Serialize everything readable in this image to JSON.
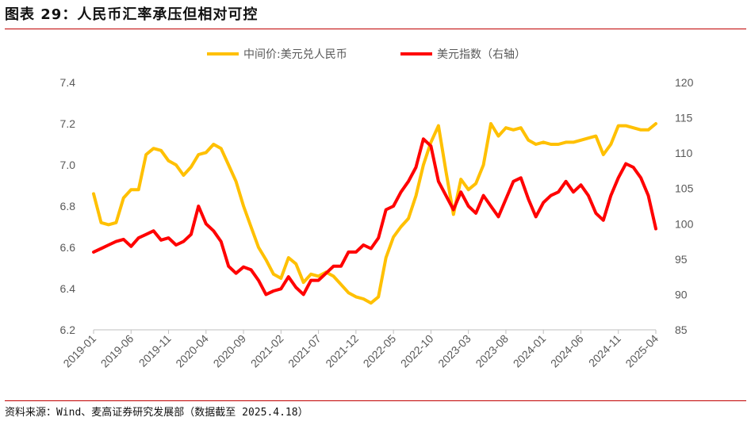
{
  "title": "图表 29：人民币汇率承压但相对可控",
  "source": "资料来源：Wind、麦高证券研究发展部（数据截至 2025.4.18）",
  "chart_data": {
    "type": "line",
    "legend_position": "top-center",
    "grid": false,
    "x": [
      "2019-01",
      "2019-06",
      "2019-11",
      "2020-04",
      "2020-09",
      "2021-02",
      "2021-07",
      "2021-12",
      "2022-05",
      "2022-10",
      "2023-03",
      "2023-08",
      "2024-01",
      "2024-06",
      "2024-11",
      "2025-04"
    ],
    "y_left": {
      "ticks": [
        "6.2",
        "6.4",
        "6.6",
        "6.8",
        "7.0",
        "7.2",
        "7.4"
      ],
      "range": [
        6.2,
        7.4
      ]
    },
    "y_right": {
      "ticks": [
        "85",
        "90",
        "95",
        "100",
        "105",
        "110",
        "115",
        "120"
      ],
      "range": [
        85,
        120
      ]
    },
    "series": [
      {
        "name": "中间价:美元兑人民币",
        "axis": "left",
        "color": "#ffc000",
        "points": [
          [
            "2019-01",
            6.86
          ],
          [
            "2019-02",
            6.72
          ],
          [
            "2019-03",
            6.71
          ],
          [
            "2019-04",
            6.72
          ],
          [
            "2019-05",
            6.84
          ],
          [
            "2019-06",
            6.88
          ],
          [
            "2019-07",
            6.88
          ],
          [
            "2019-08",
            7.05
          ],
          [
            "2019-09",
            7.08
          ],
          [
            "2019-10",
            7.07
          ],
          [
            "2019-11",
            7.02
          ],
          [
            "2019-12",
            7.0
          ],
          [
            "2020-01",
            6.95
          ],
          [
            "2020-02",
            6.99
          ],
          [
            "2020-03",
            7.05
          ],
          [
            "2020-04",
            7.06
          ],
          [
            "2020-05",
            7.1
          ],
          [
            "2020-06",
            7.08
          ],
          [
            "2020-07",
            7.0
          ],
          [
            "2020-08",
            6.92
          ],
          [
            "2020-09",
            6.8
          ],
          [
            "2020-10",
            6.7
          ],
          [
            "2020-11",
            6.6
          ],
          [
            "2020-12",
            6.54
          ],
          [
            "2021-01",
            6.47
          ],
          [
            "2021-02",
            6.45
          ],
          [
            "2021-03",
            6.55
          ],
          [
            "2021-04",
            6.52
          ],
          [
            "2021-05",
            6.43
          ],
          [
            "2021-06",
            6.47
          ],
          [
            "2021-07",
            6.46
          ],
          [
            "2021-08",
            6.48
          ],
          [
            "2021-09",
            6.46
          ],
          [
            "2021-10",
            6.42
          ],
          [
            "2021-11",
            6.38
          ],
          [
            "2021-12",
            6.36
          ],
          [
            "2022-01",
            6.35
          ],
          [
            "2022-02",
            6.33
          ],
          [
            "2022-03",
            6.36
          ],
          [
            "2022-04",
            6.55
          ],
          [
            "2022-05",
            6.65
          ],
          [
            "2022-06",
            6.7
          ],
          [
            "2022-07",
            6.74
          ],
          [
            "2022-08",
            6.85
          ],
          [
            "2022-09",
            7.0
          ],
          [
            "2022-10",
            7.11
          ],
          [
            "2022-11",
            7.19
          ],
          [
            "2022-12",
            6.97
          ],
          [
            "2023-01",
            6.76
          ],
          [
            "2023-02",
            6.93
          ],
          [
            "2023-03",
            6.88
          ],
          [
            "2023-04",
            6.91
          ],
          [
            "2023-05",
            7.0
          ],
          [
            "2023-06",
            7.2
          ],
          [
            "2023-07",
            7.14
          ],
          [
            "2023-08",
            7.18
          ],
          [
            "2023-09",
            7.17
          ],
          [
            "2023-10",
            7.18
          ],
          [
            "2023-11",
            7.12
          ],
          [
            "2023-12",
            7.1
          ],
          [
            "2024-01",
            7.11
          ],
          [
            "2024-02",
            7.1
          ],
          [
            "2024-03",
            7.1
          ],
          [
            "2024-04",
            7.11
          ],
          [
            "2024-05",
            7.11
          ],
          [
            "2024-06",
            7.12
          ],
          [
            "2024-07",
            7.13
          ],
          [
            "2024-08",
            7.14
          ],
          [
            "2024-09",
            7.05
          ],
          [
            "2024-10",
            7.1
          ],
          [
            "2024-11",
            7.19
          ],
          [
            "2024-12",
            7.19
          ],
          [
            "2025-01",
            7.18
          ],
          [
            "2025-02",
            7.17
          ],
          [
            "2025-03",
            7.17
          ],
          [
            "2025-04",
            7.2
          ]
        ]
      },
      {
        "name": "美元指数（右轴）",
        "axis": "right",
        "color": "#ff0000",
        "points": [
          [
            "2019-01",
            96.0
          ],
          [
            "2019-02",
            96.5
          ],
          [
            "2019-03",
            97.0
          ],
          [
            "2019-04",
            97.5
          ],
          [
            "2019-05",
            97.8
          ],
          [
            "2019-06",
            96.8
          ],
          [
            "2019-07",
            98.0
          ],
          [
            "2019-08",
            98.5
          ],
          [
            "2019-09",
            99.0
          ],
          [
            "2019-10",
            97.7
          ],
          [
            "2019-11",
            98.0
          ],
          [
            "2019-12",
            97.0
          ],
          [
            "2020-01",
            97.5
          ],
          [
            "2020-02",
            98.5
          ],
          [
            "2020-03",
            102.5
          ],
          [
            "2020-04",
            100.0
          ],
          [
            "2020-05",
            99.0
          ],
          [
            "2020-06",
            97.5
          ],
          [
            "2020-07",
            94.0
          ],
          [
            "2020-08",
            93.0
          ],
          [
            "2020-09",
            93.9
          ],
          [
            "2020-10",
            93.5
          ],
          [
            "2020-11",
            92.0
          ],
          [
            "2020-12",
            90.0
          ],
          [
            "2021-01",
            90.5
          ],
          [
            "2021-02",
            90.8
          ],
          [
            "2021-03",
            92.5
          ],
          [
            "2021-04",
            91.0
          ],
          [
            "2021-05",
            90.0
          ],
          [
            "2021-06",
            92.0
          ],
          [
            "2021-07",
            92.0
          ],
          [
            "2021-08",
            93.0
          ],
          [
            "2021-09",
            94.0
          ],
          [
            "2021-10",
            94.0
          ],
          [
            "2021-11",
            96.0
          ],
          [
            "2021-12",
            96.0
          ],
          [
            "2022-01",
            97.0
          ],
          [
            "2022-02",
            96.5
          ],
          [
            "2022-03",
            98.0
          ],
          [
            "2022-04",
            102.0
          ],
          [
            "2022-05",
            102.5
          ],
          [
            "2022-06",
            104.5
          ],
          [
            "2022-07",
            106.0
          ],
          [
            "2022-08",
            108.0
          ],
          [
            "2022-09",
            112.0
          ],
          [
            "2022-10",
            111.0
          ],
          [
            "2022-11",
            106.0
          ],
          [
            "2022-12",
            104.0
          ],
          [
            "2023-01",
            102.0
          ],
          [
            "2023-02",
            104.5
          ],
          [
            "2023-03",
            102.5
          ],
          [
            "2023-04",
            101.5
          ],
          [
            "2023-05",
            104.0
          ],
          [
            "2023-06",
            102.5
          ],
          [
            "2023-07",
            101.0
          ],
          [
            "2023-08",
            103.5
          ],
          [
            "2023-09",
            106.0
          ],
          [
            "2023-10",
            106.5
          ],
          [
            "2023-11",
            103.5
          ],
          [
            "2023-12",
            101.0
          ],
          [
            "2024-01",
            103.0
          ],
          [
            "2024-02",
            104.0
          ],
          [
            "2024-03",
            104.5
          ],
          [
            "2024-04",
            106.0
          ],
          [
            "2024-05",
            104.5
          ],
          [
            "2024-06",
            105.5
          ],
          [
            "2024-07",
            104.0
          ],
          [
            "2024-08",
            101.5
          ],
          [
            "2024-09",
            100.5
          ],
          [
            "2024-10",
            104.0
          ],
          [
            "2024-11",
            106.5
          ],
          [
            "2024-12",
            108.5
          ],
          [
            "2025-01",
            108.0
          ],
          [
            "2025-02",
            106.5
          ],
          [
            "2025-03",
            104.0
          ],
          [
            "2025-04",
            99.3
          ]
        ]
      }
    ]
  }
}
